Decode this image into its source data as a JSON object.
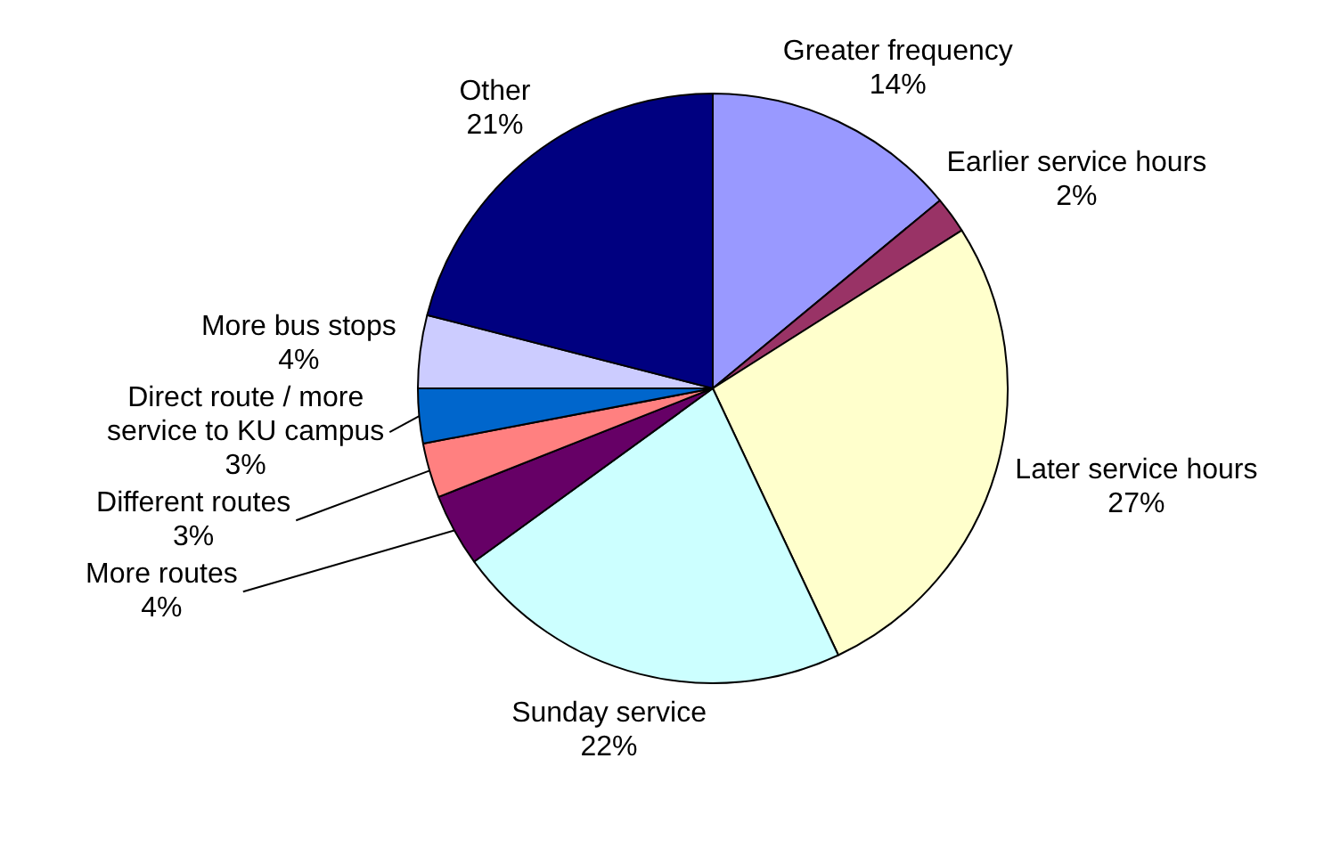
{
  "chart_data": {
    "type": "pie",
    "categories": [
      "Greater frequency",
      "Earlier service hours",
      "Later service hours",
      "Sunday service",
      "More routes",
      "Different routes",
      "Direct route / more service to KU campus",
      "More bus stops",
      "Other"
    ],
    "values": [
      14,
      2,
      27,
      22,
      4,
      3,
      3,
      4,
      21
    ],
    "colors": [
      "#9999ff",
      "#993366",
      "#ffffcc",
      "#ccffff",
      "#660066",
      "#ff8080",
      "#0066cc",
      "#ccccff",
      "#000080"
    ],
    "value_labels": [
      "14%",
      "2%",
      "27%",
      "22%",
      "4%",
      "3%",
      "3%",
      "4%",
      "21%"
    ],
    "legend": false
  }
}
